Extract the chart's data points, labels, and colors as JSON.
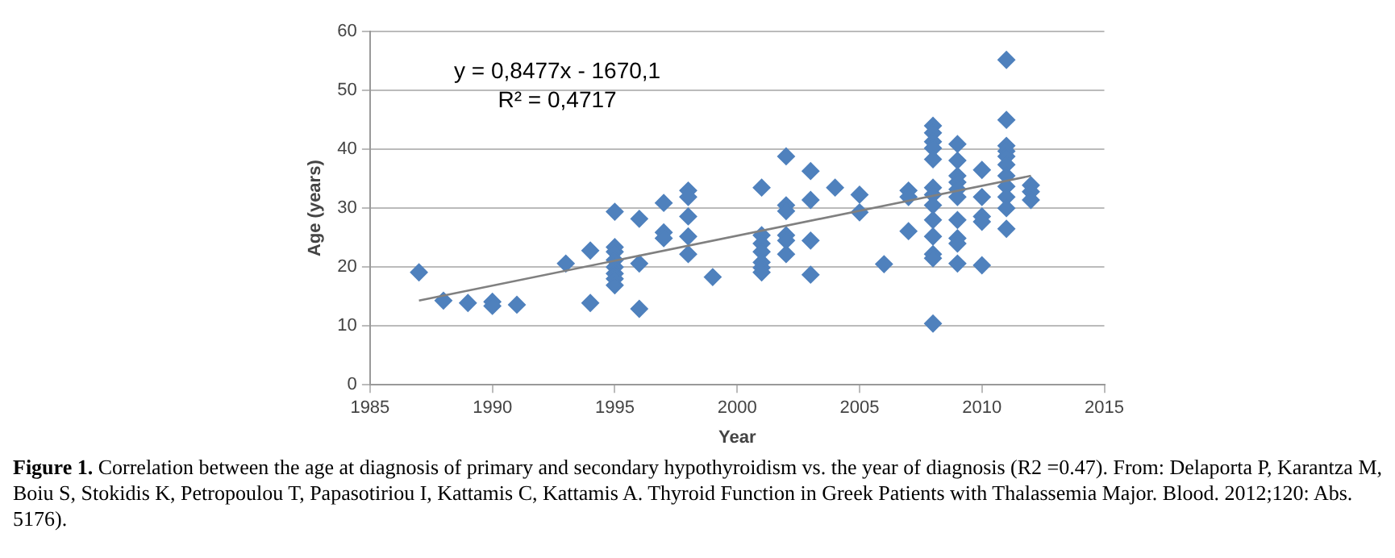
{
  "chart_data": {
    "type": "scatter",
    "xlabel": "Year",
    "ylabel": "Age (years)",
    "xlim": [
      1985,
      2015
    ],
    "xticks": [
      1985,
      1990,
      1995,
      2000,
      2005,
      2010,
      2015
    ],
    "ylim": [
      0,
      60
    ],
    "yticks": [
      0,
      10,
      20,
      30,
      40,
      50,
      60
    ],
    "grid": "y",
    "legend": false,
    "annotations": [
      "y = 0,8477x - 1670,1",
      "R² = 0,4717",
      "Figure 1.",
      "Correlation between the age at diagnosis of primary and secondary hypothyroidism vs. the year of diagnosis (R2 =0.47). From: Delaporta P, Karantza M, Boiu S, Stokidis K, Petropoulou T, Papasotiriou I, Kattamis C, Kattamis A. Thyroid Function in Greek Patients with Thalassemia Major. Blood. 2012;120: Abs. 5176)."
    ],
    "series": [
      {
        "color": "#4f81bd",
        "marker": "diamond",
        "x": [
          1987,
          1988,
          1989,
          1990,
          1990,
          1991,
          1993,
          1994,
          1994,
          1995,
          1995,
          1995,
          1995,
          1995,
          1995,
          1995,
          1995,
          1996,
          1996,
          1996,
          1997,
          1997,
          1997,
          1998,
          1998,
          1998,
          1998,
          1998,
          1999,
          2001,
          2001,
          2001,
          2001,
          2001,
          2001,
          2001,
          2002,
          2002,
          2002,
          2002,
          2002,
          2002,
          2003,
          2003,
          2003,
          2003,
          2004,
          2005,
          2005,
          2006,
          2007,
          2007,
          2007,
          2008,
          2008,
          2008,
          2008,
          2008,
          2008,
          2008,
          2008,
          2008,
          2008,
          2008,
          2008,
          2008,
          2009,
          2009,
          2009,
          2009,
          2009,
          2009,
          2009,
          2009,
          2009,
          2009,
          2010,
          2010,
          2010,
          2010,
          2010,
          2011,
          2011,
          2011,
          2011,
          2011,
          2011,
          2011,
          2011,
          2011,
          2011,
          2011,
          2012,
          2012,
          2012
        ],
        "values": [
          19.1,
          14.3,
          13.9,
          14.1,
          13.4,
          13.6,
          20.6,
          22.8,
          13.9,
          29.4,
          23.4,
          22.6,
          21.2,
          20,
          18.9,
          18,
          16.9,
          28.2,
          20.6,
          12.9,
          30.9,
          25.9,
          24.9,
          33,
          31.9,
          28.6,
          25.2,
          22.2,
          18.3,
          33.5,
          25.4,
          24,
          22.6,
          20.8,
          19.9,
          19.1,
          38.8,
          30.5,
          29.5,
          25.4,
          24.5,
          22.2,
          36.3,
          31.4,
          24.5,
          18.7,
          33.5,
          32.3,
          29.3,
          20.5,
          33,
          31.9,
          26.1,
          44,
          42.8,
          41.3,
          40.2,
          38.3,
          33.5,
          32.3,
          30.5,
          28,
          25.2,
          22.2,
          21.5,
          10.4,
          40.9,
          38.1,
          35.5,
          34.4,
          33.2,
          31.9,
          28,
          24.9,
          24,
          20.6,
          36.5,
          31.9,
          28.6,
          27.7,
          20.3,
          55.2,
          45,
          40.6,
          39.7,
          38.8,
          37.4,
          35.5,
          33.7,
          31.9,
          30,
          26.5,
          33.9,
          32.8,
          31.4
        ]
      },
      {
        "type": "line",
        "marker": "none",
        "color": "#808080",
        "x": [
          1987,
          2012
        ],
        "values": [
          14.3,
          35.5
        ]
      }
    ]
  }
}
